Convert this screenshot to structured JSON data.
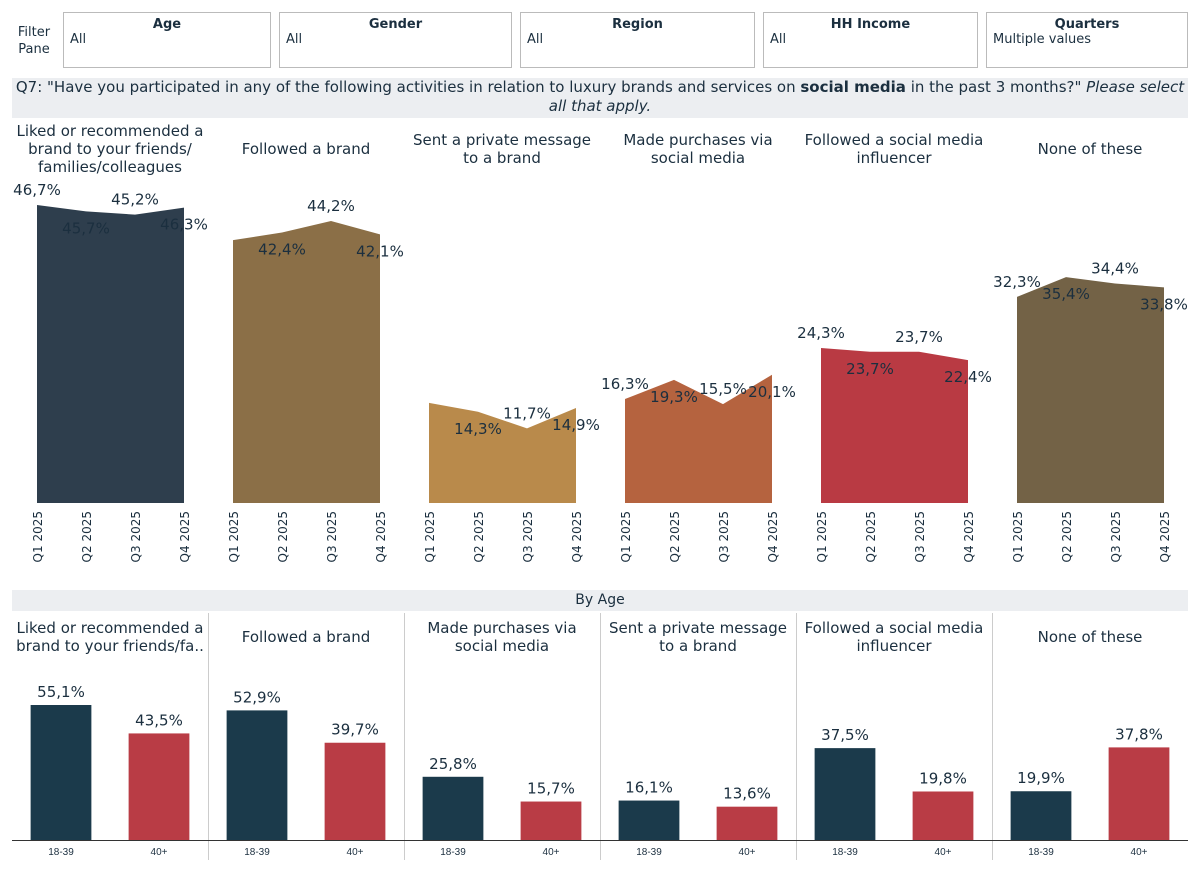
{
  "filter_pane": "Filter Pane",
  "filters": [
    {
      "name": "Age",
      "value": "All"
    },
    {
      "name": "Gender",
      "value": "All"
    },
    {
      "name": "Region",
      "value": "All"
    },
    {
      "name": "HH Income",
      "value": "All"
    },
    {
      "name": "Quarters",
      "value": "Multiple values"
    }
  ],
  "question": {
    "before": "Q7: \"Have you participated in any of the following activities in relation to luxury brands and services on ",
    "bold": "social media",
    "after": " in the past 3 months?\" ",
    "italic": "Please select all that apply."
  },
  "section_title": "By Age",
  "chart_data": [
    {
      "type": "area",
      "title": "Liked or recommended a brand to your friends/ families/colleagues",
      "categories": [
        "Q1 2025",
        "Q2 2025",
        "Q3 2025",
        "Q4 2025"
      ],
      "values": [
        46.7,
        45.7,
        45.2,
        46.3
      ],
      "value_labels": [
        "46,7%",
        "45,7%",
        "45,2%",
        "46,3%"
      ],
      "color": "#2e3e4d",
      "ylim": [
        0,
        50
      ]
    },
    {
      "type": "area",
      "title": "Followed a brand",
      "categories": [
        "Q1 2025",
        "Q2 2025",
        "Q3 2025",
        "Q4 2025"
      ],
      "values": [
        41.2,
        42.4,
        44.2,
        42.1
      ],
      "value_labels": [
        null,
        "42,4%",
        "44,2%",
        "42,1%"
      ],
      "color": "#8b6f47",
      "ylim": [
        0,
        50
      ]
    },
    {
      "type": "area",
      "title": "Sent a private message to a brand",
      "categories": [
        "Q1 2025",
        "Q2 2025",
        "Q3 2025",
        "Q4 2025"
      ],
      "values": [
        15.7,
        14.3,
        11.7,
        14.9
      ],
      "value_labels": [
        null,
        "14,3%",
        "11,7%",
        "14,9%"
      ],
      "color": "#b98a4b",
      "ylim": [
        0,
        50
      ]
    },
    {
      "type": "area",
      "title": "Made purchases via social media",
      "categories": [
        "Q1 2025",
        "Q2 2025",
        "Q3 2025",
        "Q4 2025"
      ],
      "values": [
        16.3,
        19.3,
        15.5,
        20.1
      ],
      "value_labels": [
        "16,3%",
        "19,3%",
        "15,5%",
        "20,1%"
      ],
      "color": "#b5633f",
      "ylim": [
        0,
        50
      ]
    },
    {
      "type": "area",
      "title": "Followed a social media influencer",
      "categories": [
        "Q1 2025",
        "Q2 2025",
        "Q3 2025",
        "Q4 2025"
      ],
      "values": [
        24.3,
        23.7,
        23.7,
        22.4
      ],
      "value_labels": [
        "24,3%",
        "23,7%",
        "23,7%",
        "22,4%"
      ],
      "color": "#b93a43",
      "ylim": [
        0,
        50
      ]
    },
    {
      "type": "area",
      "title": "None of these",
      "categories": [
        "Q1 2025",
        "Q2 2025",
        "Q3 2025",
        "Q4 2025"
      ],
      "values": [
        32.3,
        35.4,
        34.4,
        33.8
      ],
      "value_labels": [
        "32,3%",
        "35,4%",
        "34,4%",
        "33,8%"
      ],
      "color": "#736246",
      "ylim": [
        0,
        50
      ]
    },
    {
      "type": "bar",
      "title": "Liked or recommended a brand to your friends/fa..",
      "categories": [
        "18-39",
        "40+"
      ],
      "values": [
        55.1,
        43.5
      ],
      "value_labels": [
        "55,1%",
        "43,5%"
      ],
      "colors": [
        "#1b3a4b",
        "#b93c45"
      ],
      "ylim": [
        0,
        70
      ]
    },
    {
      "type": "bar",
      "title": "Followed a brand",
      "categories": [
        "18-39",
        "40+"
      ],
      "values": [
        52.9,
        39.7
      ],
      "value_labels": [
        "52,9%",
        "39,7%"
      ],
      "colors": [
        "#1b3a4b",
        "#b93c45"
      ],
      "ylim": [
        0,
        70
      ]
    },
    {
      "type": "bar",
      "title": "Made purchases via social media",
      "categories": [
        "18-39",
        "40+"
      ],
      "values": [
        25.8,
        15.7
      ],
      "value_labels": [
        "25,8%",
        "15,7%"
      ],
      "colors": [
        "#1b3a4b",
        "#b93c45"
      ],
      "ylim": [
        0,
        70
      ]
    },
    {
      "type": "bar",
      "title": "Sent a private message to a brand",
      "categories": [
        "18-39",
        "40+"
      ],
      "values": [
        16.1,
        13.6
      ],
      "value_labels": [
        "16,1%",
        "13,6%"
      ],
      "colors": [
        "#1b3a4b",
        "#b93c45"
      ],
      "ylim": [
        0,
        70
      ]
    },
    {
      "type": "bar",
      "title": "Followed a social media influencer",
      "categories": [
        "18-39",
        "40+"
      ],
      "values": [
        37.5,
        19.8
      ],
      "value_labels": [
        "37,5%",
        "19,8%"
      ],
      "colors": [
        "#1b3a4b",
        "#b93c45"
      ],
      "ylim": [
        0,
        70
      ]
    },
    {
      "type": "bar",
      "title": "None of these",
      "categories": [
        "18-39",
        "40+"
      ],
      "values": [
        19.9,
        37.8
      ],
      "value_labels": [
        "19,9%",
        "37,8%"
      ],
      "colors": [
        "#1b3a4b",
        "#b93c45"
      ],
      "ylim": [
        0,
        70
      ]
    }
  ]
}
